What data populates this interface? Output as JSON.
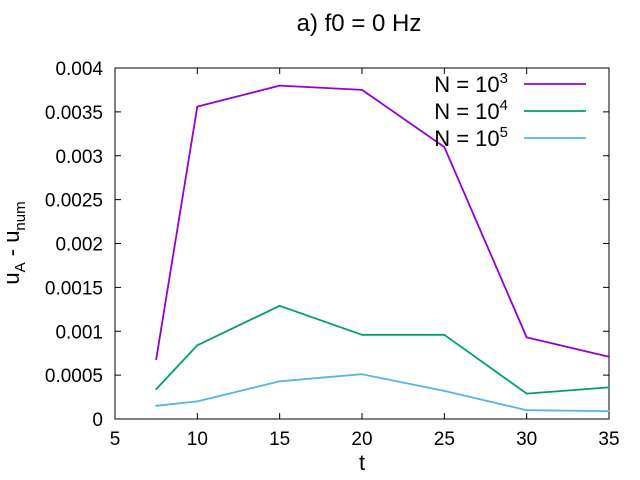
{
  "chart_data": {
    "type": "line",
    "title": "a) f0 = 0 Hz",
    "xlabel": "t",
    "ylabel": {
      "main": "u",
      "sub_a": "A",
      "sep": " - u",
      "sub_b": "num"
    },
    "xlim": [
      5,
      35
    ],
    "ylim": [
      0,
      0.004
    ],
    "x_ticks": [
      5,
      10,
      15,
      20,
      25,
      30,
      35
    ],
    "y_ticks": [
      0,
      0.0005,
      0.001,
      0.0015,
      0.002,
      0.0025,
      0.003,
      0.0035,
      0.004
    ],
    "y_tick_labels": [
      "0",
      "0.0005",
      "0.001",
      "0.0015",
      "0.002",
      "0.0025",
      "0.003",
      "0.0035",
      "0.004"
    ],
    "grid": false,
    "legend_position": "top-right",
    "x": [
      7.5,
      10,
      15,
      20,
      25,
      30,
      35
    ],
    "series": [
      {
        "name_base": "N = 10",
        "name_exp": "3",
        "color": "#9400d3",
        "values": [
          0.00068,
          0.00356,
          0.0038,
          0.00375,
          0.0031,
          0.00093,
          0.00071
        ]
      },
      {
        "name_base": "N = 10",
        "name_exp": "4",
        "color": "#009e73",
        "values": [
          0.00034,
          0.00084,
          0.00129,
          0.00096,
          0.00096,
          0.00029,
          0.00036
        ]
      },
      {
        "name_base": "N = 10",
        "name_exp": "5",
        "color": "#56b4e9",
        "values": [
          0.00015,
          0.0002,
          0.00043,
          0.00051,
          0.00032,
          0.0001,
          9e-05
        ]
      }
    ]
  }
}
